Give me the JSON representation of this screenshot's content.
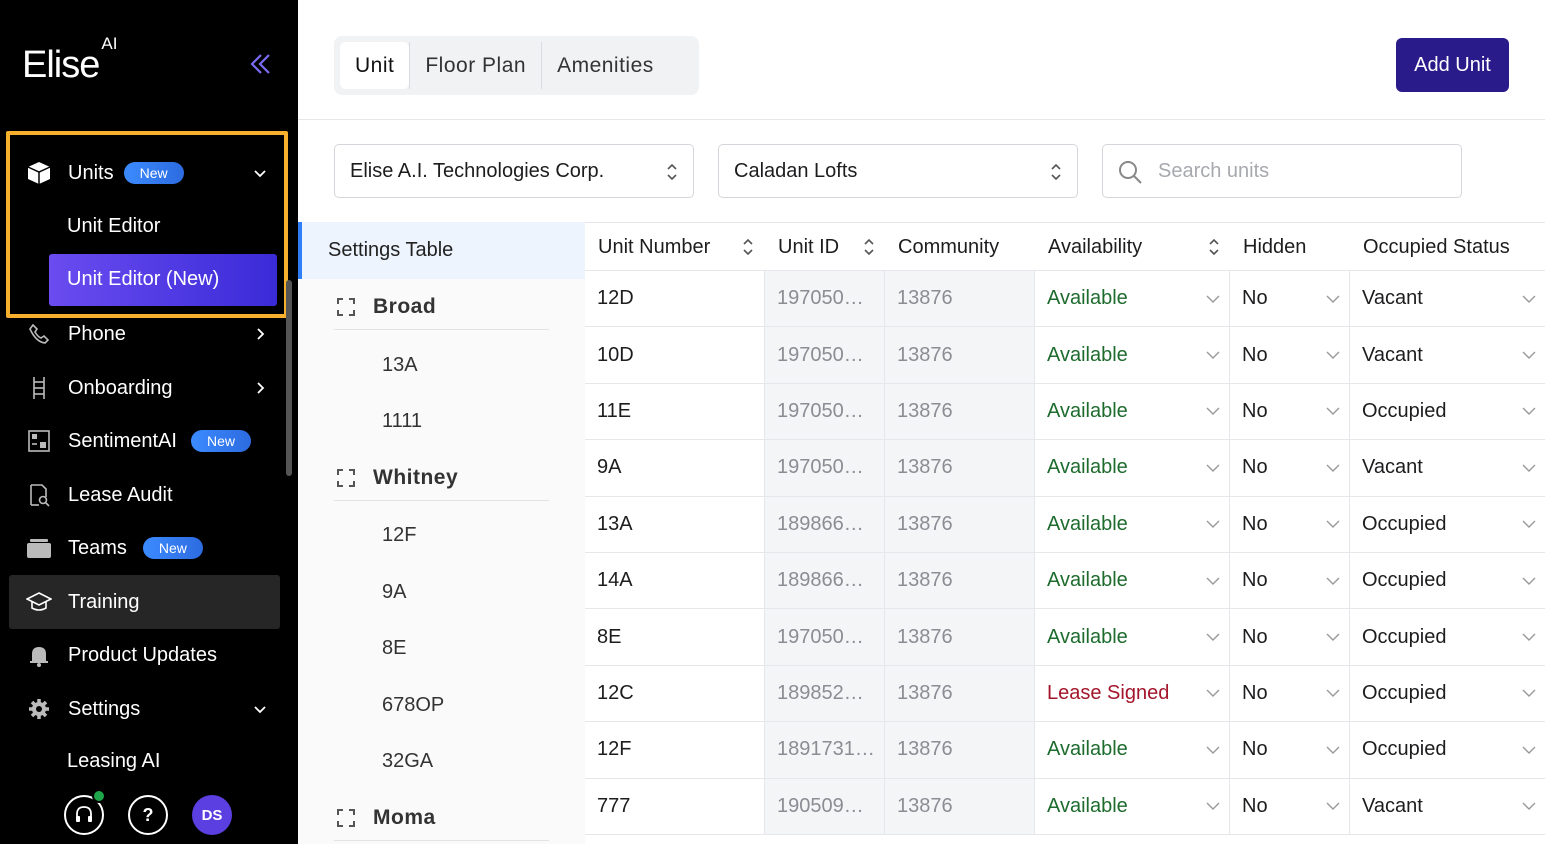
{
  "brand": {
    "name": "Elise",
    "suffix": "AI"
  },
  "nav": {
    "units": {
      "label": "Units",
      "badge": "New"
    },
    "unit_editor": "Unit Editor",
    "unit_editor_new": "Unit Editor (New)",
    "phone": "Phone",
    "onboarding": "Onboarding",
    "sentiment": {
      "label": "SentimentAI",
      "badge": "New"
    },
    "lease_audit": "Lease Audit",
    "teams": {
      "label": "Teams",
      "badge": "New"
    },
    "training": "Training",
    "product_updates": "Product Updates",
    "settings": "Settings",
    "leasing_ai": "Leasing AI",
    "help": "?",
    "avatar": "DS"
  },
  "tabs": [
    "Unit",
    "Floor Plan",
    "Amenities"
  ],
  "add_button": "Add Unit",
  "filters": {
    "company": "Elise A.I. Technologies Corp.",
    "community": "Caladan Lofts",
    "search_placeholder": "Search units"
  },
  "tree": {
    "header": "Settings Table",
    "groups": [
      {
        "name": "Broad",
        "units": [
          "13A",
          "1111"
        ]
      },
      {
        "name": "Whitney",
        "units": [
          "12F",
          "9A",
          "8E",
          "678OP",
          "32GA"
        ]
      },
      {
        "name": "Moma",
        "units": []
      }
    ]
  },
  "table": {
    "headers": [
      "Unit Number",
      "Unit ID",
      "Community",
      "Availability",
      "Hidden",
      "Occupied Status"
    ],
    "rows": [
      [
        "12D",
        "197050…",
        "13876",
        "Available",
        "No",
        "Vacant"
      ],
      [
        "10D",
        "197050…",
        "13876",
        "Available",
        "No",
        "Vacant"
      ],
      [
        "11E",
        "197050…",
        "13876",
        "Available",
        "No",
        "Occupied"
      ],
      [
        "9A",
        "197050…",
        "13876",
        "Available",
        "No",
        "Vacant"
      ],
      [
        "13A",
        "189866…",
        "13876",
        "Available",
        "No",
        "Occupied"
      ],
      [
        "14A",
        "189866…",
        "13876",
        "Available",
        "No",
        "Occupied"
      ],
      [
        "8E",
        "197050…",
        "13876",
        "Available",
        "No",
        "Occupied"
      ],
      [
        "12C",
        "189852…",
        "13876",
        "Lease Signed",
        "No",
        "Occupied"
      ],
      [
        "12F",
        "1891731…",
        "13876",
        "Available",
        "No",
        "Occupied"
      ],
      [
        "777",
        "190509…",
        "13876",
        "Available",
        "No",
        "Vacant"
      ]
    ]
  },
  "colors": {
    "accent": "#2a1b8a",
    "highlight": "#f6b02d",
    "available": "#1e6b2e",
    "lease_signed": "#a3162b"
  }
}
